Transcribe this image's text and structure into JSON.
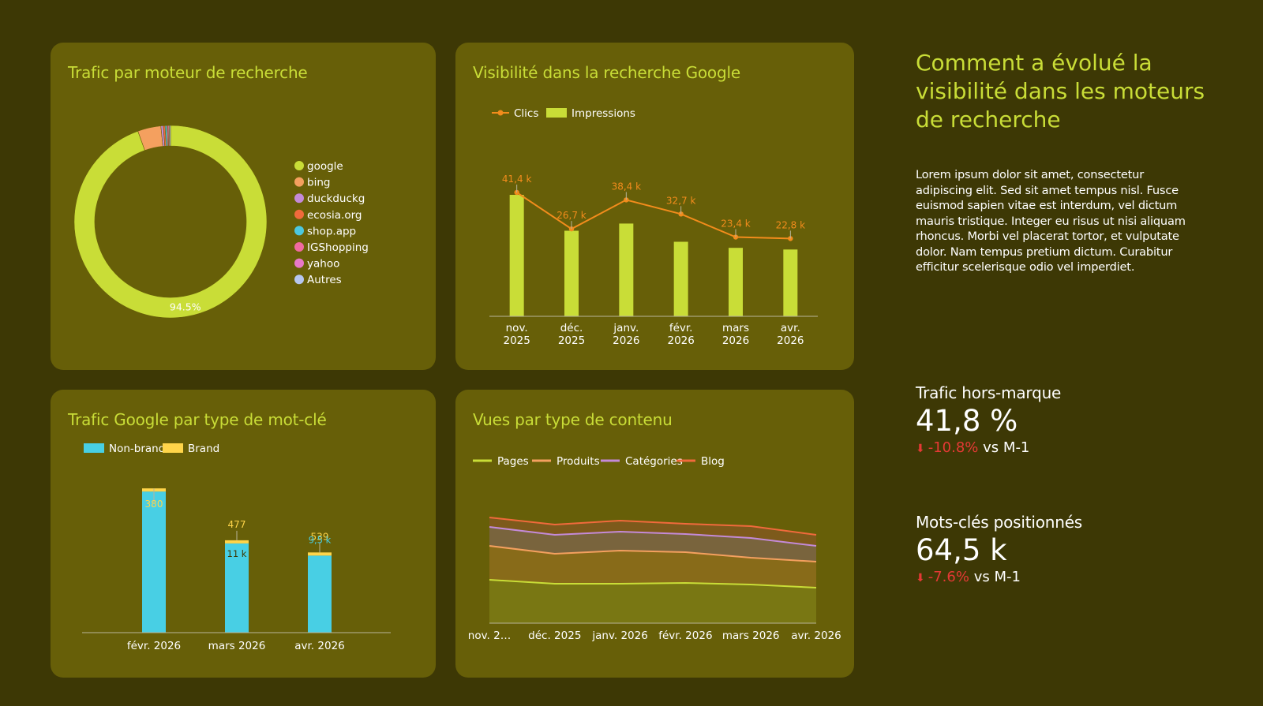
{
  "panels": {
    "traffic": {
      "title": "Trafic par moteur de recherche"
    },
    "visibility": {
      "title": "Visibilité dans la recherche Google"
    },
    "keywords": {
      "title": "Trafic Google par type de mot-clé"
    },
    "views": {
      "title": "Vues par type de contenu"
    }
  },
  "side": {
    "title": "Comment a évolué la visibilité dans les moteurs de recherche",
    "body": "Lorem ipsum dolor sit amet, consectetur adipiscing elit. Sed sit amet tempus nisl. Fusce euismod sapien vitae est interdum, vel dictum mauris tristique. Integer eu risus ut nisi aliquam rhoncus. Morbi vel placerat tortor, et vulputate dolor. Nam tempus pretium dictum. Curabitur efficitur scelerisque odio vel imperdiet."
  },
  "kpis": [
    {
      "label": "Trafic hors-marque",
      "value": "41,8 %",
      "delta": "-10.8%",
      "suffix": "vs M-1"
    },
    {
      "label": "Mots-clés positionnés",
      "value": "64,5 k",
      "delta": "-7.6%",
      "suffix": "vs M-1"
    }
  ],
  "colors": {
    "accent": "#c9dd37",
    "panel": "#675f08",
    "background": "#3d3805",
    "negative": "#e53935"
  },
  "chart_data": [
    {
      "type": "pie",
      "title": "Trafic par moteur de recherche",
      "labels": [
        "google",
        "bing",
        "duckduckg",
        "ecosia.org",
        "shop.app",
        "IGShopping",
        "yahoo",
        "Autres"
      ],
      "values": [
        94.5,
        3.9,
        0.4,
        0.3,
        0.3,
        0.2,
        0.2,
        0.2
      ],
      "colors": [
        "#c9dd37",
        "#f4a05f",
        "#c48ad8",
        "#f06a3c",
        "#4cc8e0",
        "#f06aa0",
        "#e878c8",
        "#b6c6f0"
      ],
      "data_labels": [
        "94.5%",
        "",
        "",
        "",
        "",
        "",
        "",
        ""
      ],
      "legend": "right"
    },
    {
      "type": "bar",
      "title": "Visibilité dans la recherche Google",
      "categories": [
        "nov. 2025",
        "déc. 2025",
        "janv. 2026",
        "févr. 2026",
        "mars 2026",
        "avr. 2026"
      ],
      "series": [
        {
          "name": "Clics",
          "type": "line",
          "color": "#f28c1c",
          "values": [
            41.4,
            26.7,
            38.4,
            32.7,
            23.4,
            22.8
          ],
          "labels": [
            "41,4 k",
            "26,7 k",
            "38,4 k",
            "32,7 k",
            "23,4 k",
            "22,8 k"
          ]
        },
        {
          "name": "Impressions",
          "type": "bar",
          "color": "#c9dd37",
          "values": [
            2.2,
            1.55,
            1.68,
            1.35,
            1.24,
            1.21
          ]
        }
      ],
      "legend": "top-left",
      "grid": false
    },
    {
      "type": "bar",
      "title": "Trafic Google par type de mot-clé",
      "categories": [
        "févr. 2026",
        "mars 2026",
        "avr. 2026"
      ],
      "stacked": true,
      "series": [
        {
          "name": "Non-brand",
          "color": "#48cfe4",
          "values": [
            17.4,
            11.0,
            9.5
          ],
          "labels": [
            "",
            "11 k",
            "9,5 k"
          ]
        },
        {
          "name": "Brand",
          "color": "#ffd54a",
          "values": [
            0.38,
            0.477,
            0.539
          ],
          "labels": [
            "380",
            "477",
            "539"
          ]
        }
      ],
      "legend": "top-left",
      "grid": false
    },
    {
      "type": "area",
      "title": "Vues par type de contenu",
      "categories": [
        "nov. 2…",
        "déc. 2025",
        "janv. 2026",
        "févr. 2026",
        "mars 2026",
        "avr. 2026"
      ],
      "stacked": true,
      "series": [
        {
          "name": "Pages",
          "color": "#c9dd37",
          "values": [
            55,
            50,
            50,
            51,
            49,
            45
          ]
        },
        {
          "name": "Produits",
          "color": "#f4a05f",
          "values": [
            43,
            38,
            42,
            39,
            34,
            33
          ]
        },
        {
          "name": "Catégories",
          "color": "#c48ad8",
          "values": [
            24,
            24,
            24,
            23,
            25,
            20
          ]
        },
        {
          "name": "Blog",
          "color": "#f06a3c",
          "values": [
            12,
            13,
            14,
            13,
            15,
            14
          ]
        }
      ],
      "legend": "top-left",
      "grid": false
    }
  ]
}
